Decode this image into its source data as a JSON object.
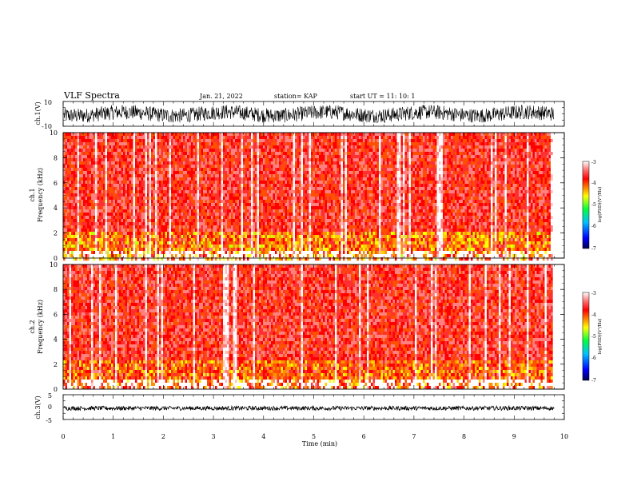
{
  "header": {
    "title": "VLF Spectra",
    "date": "Jan. 21, 2022",
    "station": "station= KAP",
    "start": "start UT =  11: 10: 1"
  },
  "chart_data": [
    {
      "type": "line",
      "id": "ch1-waveform",
      "ylabel": "ch.1(V)",
      "ylim": [
        -10,
        10
      ],
      "yticks": [
        "10",
        "-10"
      ],
      "xlim": [
        0,
        10
      ],
      "data_extent_min": 9.8,
      "description_of_signal": "dense noisy waveform spanning roughly -7 to 7 V",
      "envelope_min": -7,
      "envelope_max": 7
    },
    {
      "type": "heatmap",
      "id": "ch1-spectrogram",
      "ylabel": "ch.1\nFrequency (kHz)",
      "ylabel_line1": "ch.1",
      "ylabel_line2": "Frequency (kHz)",
      "ylim": [
        0,
        10
      ],
      "yticks": [
        "0",
        "2",
        "4",
        "6",
        "8",
        "10"
      ],
      "xlim": [
        0,
        10
      ],
      "data_extent_min": 9.8,
      "colorbar": {
        "label": "log(PSD)(V²/Hz)",
        "range": [
          -7,
          -3
        ],
        "ticks": [
          "-3",
          "-4",
          "-5",
          "-6",
          "-7"
        ]
      }
    },
    {
      "type": "heatmap",
      "id": "ch2-spectrogram",
      "ylabel_line1": "ch.2",
      "ylabel_line2": "Frequency (kHz)",
      "ylim": [
        0,
        10
      ],
      "yticks": [
        "0",
        "2",
        "4",
        "6",
        "8",
        "10"
      ],
      "xlim": [
        0,
        10
      ],
      "data_extent_min": 9.8,
      "colorbar": {
        "label": "log(PSD)(V²/Hz)",
        "range": [
          -7,
          -3
        ],
        "ticks": [
          "-3",
          "-4",
          "-5",
          "-6",
          "-7"
        ]
      }
    },
    {
      "type": "line",
      "id": "ch3-waveform",
      "ylabel": "ch.3(V)",
      "ylim": [
        -5,
        5
      ],
      "yticks": [
        "5",
        "0",
        "-5"
      ],
      "xlim": [
        0,
        10
      ],
      "data_extent_min": 9.8,
      "envelope_min": -1.3,
      "envelope_max": 0.4
    }
  ],
  "xaxis": {
    "label": "Time (min)",
    "ticks": [
      "0",
      "1",
      "2",
      "3",
      "4",
      "5",
      "6",
      "7",
      "8",
      "9",
      "10"
    ]
  },
  "colors": {
    "colormap": [
      "#000060",
      "#0000ff",
      "#00a0ff",
      "#00ff60",
      "#ffff00",
      "#ff8000",
      "#ff0000",
      "#ff6060",
      "#ffffff"
    ],
    "waveform": "#000000"
  }
}
